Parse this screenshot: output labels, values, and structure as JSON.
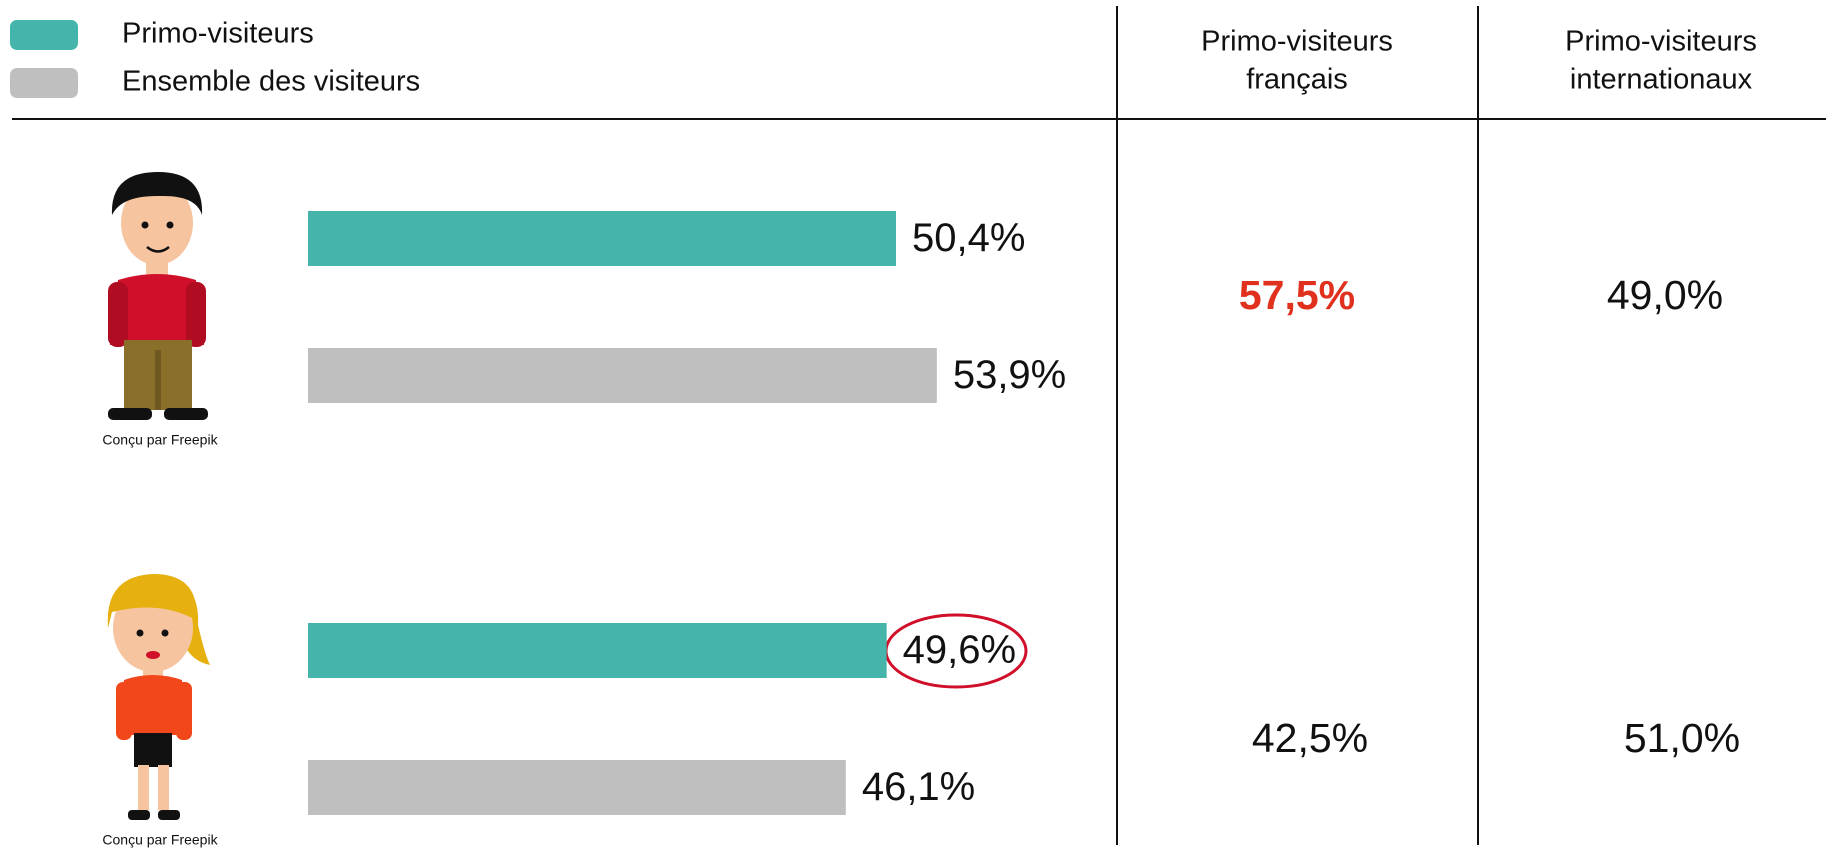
{
  "chart_data": {
    "type": "bar",
    "orientation": "horizontal",
    "categories": [
      null,
      null
    ],
    "series": [
      {
        "name": "Primo-visiteurs",
        "color": "#45b5ab",
        "values": [
          50.4,
          49.6
        ],
        "value_labels": [
          "50,4%",
          "49,6%"
        ]
      },
      {
        "name": "Ensemble des visiteurs",
        "color": "#bfbfbf",
        "values": [
          53.9,
          46.1
        ],
        "value_labels": [
          "53,9%",
          "46,1%"
        ]
      }
    ],
    "xlim": [
      0,
      60
    ],
    "grid": false,
    "legend": "top-left"
  },
  "credits": [
    "Conçu par Freepik",
    "Conçu par Freepik"
  ],
  "table": {
    "columns": [
      [
        "Primo-visiteurs",
        "français"
      ],
      [
        "Primo-visiteurs",
        "internationaux"
      ]
    ],
    "rows": [
      [
        "57,5%",
        "49,0%"
      ],
      [
        "42,5%",
        "51,0%"
      ]
    ]
  }
}
